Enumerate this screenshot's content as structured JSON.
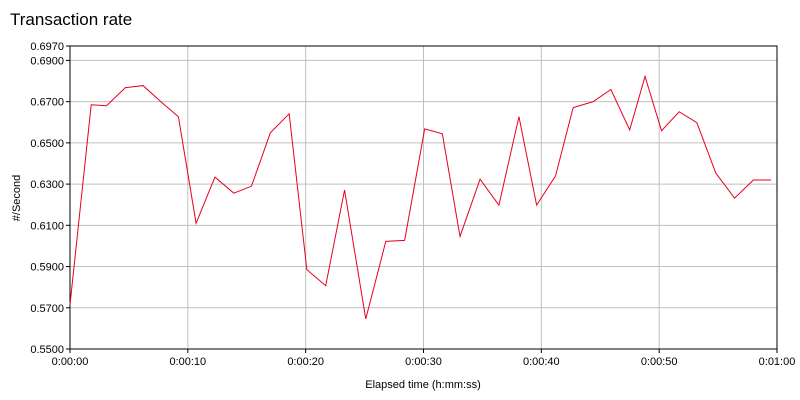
{
  "chart_data": {
    "type": "line",
    "title": "Transaction rate",
    "x_label": "Elapsed time (h:mm:ss)",
    "y_label": "#/Second",
    "x": [
      0,
      1.8,
      3.1,
      4.7,
      6.2,
      7.7,
      9.2,
      10.7,
      12.3,
      13.9,
      15.4,
      17.0,
      18.6,
      20.1,
      21.7,
      23.3,
      25.1,
      26.8,
      28.4,
      30.1,
      31.6,
      33.1,
      34.8,
      36.4,
      38.1,
      39.6,
      41.2,
      42.7,
      44.4,
      45.9,
      47.5,
      48.8,
      50.2,
      51.7,
      53.2,
      54.8,
      56.4,
      58.0,
      59.5
    ],
    "series": [
      {
        "name": "Transaction rate",
        "color": "#e8001c",
        "values": [
          0.5715,
          0.6685,
          0.668,
          0.6768,
          0.6778,
          0.67,
          0.6627,
          0.611,
          0.6334,
          0.6256,
          0.629,
          0.6549,
          0.6641,
          0.5885,
          0.5807,
          0.6271,
          0.5646,
          0.6022,
          0.6027,
          0.6568,
          0.6544,
          0.6046,
          0.6324,
          0.6198,
          0.6627,
          0.6198,
          0.6339,
          0.6671,
          0.67,
          0.6759,
          0.6563,
          0.6822,
          0.6559,
          0.6651,
          0.6598,
          0.6354,
          0.6232,
          0.632,
          0.632
        ]
      }
    ],
    "xlim": [
      0,
      60
    ],
    "xticks": [
      {
        "value": 0,
        "label": "0:00:00"
      },
      {
        "value": 10,
        "label": "0:00:10"
      },
      {
        "value": 20,
        "label": "0:00:20"
      },
      {
        "value": 30,
        "label": "0:00:30"
      },
      {
        "value": 40,
        "label": "0:00:40"
      },
      {
        "value": 50,
        "label": "0:00:50"
      },
      {
        "value": 60,
        "label": "0:01:00"
      }
    ],
    "ylim": [
      0.55,
      0.697
    ],
    "yticks": [
      {
        "value": 0.55,
        "label": "0.5500"
      },
      {
        "value": 0.57,
        "label": "0.5700"
      },
      {
        "value": 0.59,
        "label": "0.5900"
      },
      {
        "value": 0.61,
        "label": "0.6100"
      },
      {
        "value": 0.63,
        "label": "0.6300"
      },
      {
        "value": 0.65,
        "label": "0.6500"
      },
      {
        "value": 0.67,
        "label": "0.6700"
      },
      {
        "value": 0.69,
        "label": "0.6900"
      },
      {
        "value": 0.697,
        "label": "0.6970"
      }
    ],
    "grid": true
  }
}
